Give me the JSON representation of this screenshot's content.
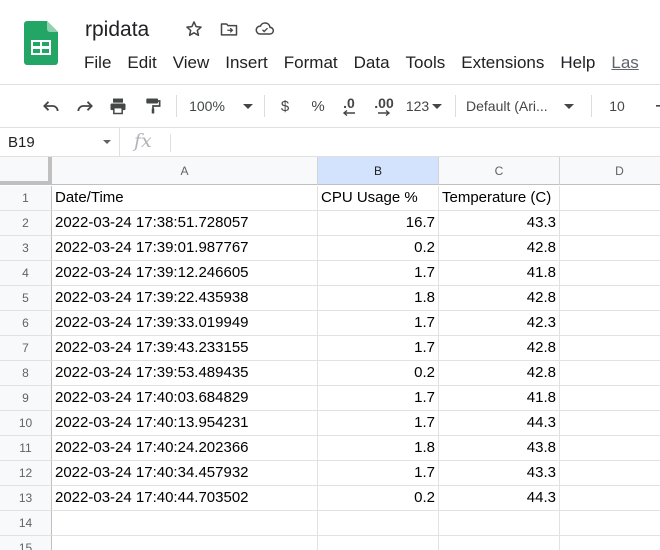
{
  "document": {
    "title": "rpidata"
  },
  "menu": [
    "File",
    "Edit",
    "View",
    "Insert",
    "Format",
    "Data",
    "Tools",
    "Extensions",
    "Help",
    "Las"
  ],
  "toolbar": {
    "zoom": "100%",
    "currency": "$",
    "percent": "%",
    "decrease_decimal": ".0",
    "increase_decimal": ".00",
    "number_format": "123",
    "font": "Default (Ari...",
    "font_size": "10"
  },
  "formula_bar": {
    "cell_ref": "B19",
    "fx": "fx",
    "value": ""
  },
  "sheet": {
    "columns": [
      "A",
      "B",
      "C",
      "D"
    ],
    "selected_column": "B",
    "row_numbers": [
      "1",
      "2",
      "3",
      "4",
      "5",
      "6",
      "7",
      "8",
      "9",
      "10",
      "11",
      "12",
      "13",
      "14",
      "15"
    ],
    "rows": [
      [
        "Date/Time",
        "CPU Usage %",
        "Temperature (C)"
      ],
      [
        "2022-03-24 17:38:51.728057",
        "16.7",
        "43.3"
      ],
      [
        "2022-03-24 17:39:01.987767",
        "0.2",
        "42.8"
      ],
      [
        "2022-03-24 17:39:12.246605",
        "1.7",
        "41.8"
      ],
      [
        "2022-03-24 17:39:22.435938",
        "1.8",
        "42.8"
      ],
      [
        "2022-03-24 17:39:33.019949",
        "1.7",
        "42.3"
      ],
      [
        "2022-03-24 17:39:43.233155",
        "1.7",
        "42.8"
      ],
      [
        "2022-03-24 17:39:53.489435",
        "0.2",
        "42.8"
      ],
      [
        "2022-03-24 17:40:03.684829",
        "1.7",
        "41.8"
      ],
      [
        "2022-03-24 17:40:13.954231",
        "1.7",
        "44.3"
      ],
      [
        "2022-03-24 17:40:24.202366",
        "1.8",
        "43.8"
      ],
      [
        "2022-03-24 17:40:34.457932",
        "1.7",
        "43.3"
      ],
      [
        "2022-03-24 17:40:44.703502",
        "0.2",
        "44.3"
      ]
    ]
  },
  "icons": {
    "logo": "sheets-logo-icon",
    "star": "star-icon",
    "move": "move-to-folder-icon",
    "cloud": "cloud-status-icon"
  },
  "colors": {
    "logo_green": "#23A566",
    "selected_header": "#d3e3fd"
  }
}
